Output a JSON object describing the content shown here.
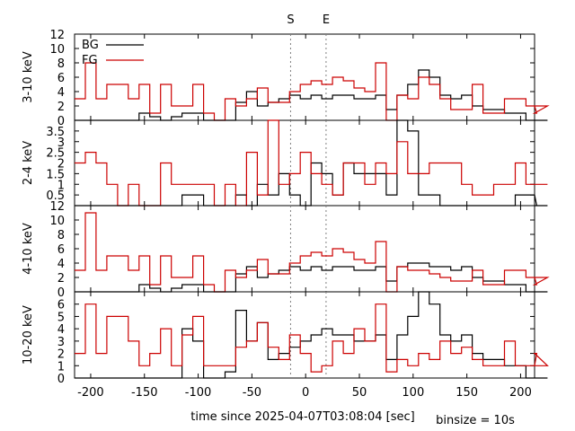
{
  "chart_data": {
    "type": "line",
    "step": true,
    "xlabel": "time since 2025-04-07T03:08:04 [sec]",
    "binsize_label": "binsize = 10s",
    "xlim": [
      -215,
      213
    ],
    "xticks": [
      -200,
      -150,
      -100,
      -50,
      0,
      50,
      100,
      150,
      200
    ],
    "markers": [
      {
        "label": "S",
        "x": -14
      },
      {
        "label": "E",
        "x": 19
      }
    ],
    "bin_start": -215,
    "bin_width": 10,
    "colors": {
      "BG": "#000000",
      "FG": "#cc0000"
    },
    "panels": [
      {
        "ylabel": "3-10 keV",
        "ylim": [
          0,
          12
        ],
        "yticks": [
          0,
          2,
          4,
          6,
          8,
          10,
          12
        ],
        "legend": [
          "BG",
          "FG"
        ],
        "series": [
          {
            "name": "BG",
            "values": [
              0,
              0,
              0,
              0,
              0,
              0,
              1,
              0.5,
              0,
              0.5,
              1,
              1,
              0,
              0,
              0,
              2.5,
              4,
              2,
              2.5,
              3,
              3.5,
              3,
              3.5,
              3,
              3.5,
              3.5,
              3,
              3,
              3.5,
              1.5,
              3.5,
              5,
              7,
              6,
              3.5,
              3,
              3.5,
              2,
              1.5,
              1.5,
              1,
              1,
              0,
              0,
              0
            ]
          },
          {
            "name": "FG",
            "values": [
              3,
              8,
              3,
              5,
              5,
              3,
              5,
              1,
              5,
              2,
              2,
              5,
              1,
              0,
              3,
              2,
              3,
              4.5,
              2.5,
              2.5,
              4,
              5,
              5.5,
              5,
              6,
              5.5,
              4.5,
              4,
              8,
              0,
              3.5,
              3,
              6,
              5,
              3,
              1.5,
              1.5,
              5,
              1,
              1,
              3,
              3,
              2,
              1,
              2
            ]
          }
        ]
      },
      {
        "ylabel": "2-4 keV",
        "ylim": [
          0,
          4
        ],
        "yticks": [
          0.5,
          1,
          1.5,
          2,
          2.5,
          3,
          3.5
        ],
        "series": [
          {
            "name": "BG",
            "values": [
              0,
              0,
              0,
              0,
              0,
              0,
              0,
              0,
              0,
              0,
              0.5,
              0.5,
              0,
              0,
              0,
              0.5,
              0,
              1,
              0.5,
              1.5,
              0.5,
              0,
              2,
              1.5,
              0.5,
              2,
              1.5,
              1.5,
              1.5,
              0.5,
              4,
              3.5,
              0.5,
              0.5,
              0,
              0,
              0,
              0,
              0,
              0,
              0,
              0.5,
              0.5,
              0,
              0
            ]
          },
          {
            "name": "FG",
            "values": [
              2,
              2.5,
              2,
              1,
              0,
              1,
              0,
              0,
              2,
              1,
              1,
              1,
              1,
              0,
              1,
              0,
              2.5,
              0.5,
              4,
              1,
              1.5,
              2.5,
              1.5,
              1,
              0.5,
              2,
              2,
              1,
              2,
              1.5,
              3,
              1.5,
              1.5,
              2,
              2,
              2,
              1,
              0.5,
              0.5,
              1,
              1,
              2,
              1,
              1,
              1
            ]
          }
        ]
      },
      {
        "ylabel": "4-10 keV",
        "ylim": [
          0,
          12
        ],
        "yticks": [
          0,
          2,
          4,
          6,
          8,
          10,
          12
        ],
        "series": [
          {
            "name": "BG",
            "values": [
              0,
              0,
              0,
              0,
              0,
              0,
              1,
              0.5,
              0,
              0.5,
              1,
              1,
              0,
              0,
              0,
              2.5,
              3.5,
              2,
              2.5,
              3,
              3.5,
              3,
              3.5,
              3,
              3.5,
              3.5,
              3,
              3,
              3.5,
              1.5,
              3.5,
              4,
              4,
              3.5,
              3.5,
              3,
              3.5,
              2,
              1.5,
              1.5,
              1,
              1,
              0,
              0,
              0
            ]
          },
          {
            "name": "FG",
            "values": [
              3,
              11,
              3,
              5,
              5,
              3,
              5,
              1,
              5,
              2,
              2,
              5,
              1,
              0,
              3,
              2,
              3,
              4.5,
              2.5,
              2.5,
              4,
              5,
              5.5,
              5,
              6,
              5.5,
              4.5,
              4,
              7,
              0,
              3.5,
              3,
              3,
              2.5,
              2,
              1.5,
              1.5,
              3,
              1,
              1,
              3,
              3,
              2,
              1,
              2
            ]
          }
        ]
      },
      {
        "ylabel": "10-20 keV",
        "ylim": [
          0,
          7
        ],
        "yticks": [
          0,
          1,
          2,
          3,
          4,
          5,
          6
        ],
        "series": [
          {
            "name": "BG",
            "values": [
              0,
              0,
              0,
              0,
              0,
              0,
              0,
              0,
              0,
              0,
              4,
              3,
              0,
              0,
              0.5,
              5.5,
              3,
              4.5,
              1.5,
              2,
              2.5,
              3,
              3.5,
              4,
              3.5,
              3.5,
              3,
              3,
              3.5,
              1.5,
              3.5,
              5,
              7,
              6,
              3.5,
              3,
              3.5,
              2,
              1.5,
              1.5,
              1,
              1,
              0,
              0,
              0
            ]
          },
          {
            "name": "FG",
            "values": [
              2,
              6,
              2,
              5,
              5,
              3,
              1,
              2,
              4,
              1,
              3.5,
              5,
              1,
              1,
              1,
              2.5,
              3,
              4.5,
              2.5,
              1.5,
              3.5,
              2,
              0.5,
              1,
              3,
              2,
              4,
              3,
              6,
              0.5,
              1.5,
              1,
              2,
              1.5,
              3,
              2,
              2.5,
              1.5,
              1,
              1,
              3,
              1,
              1,
              2,
              1
            ]
          }
        ]
      }
    ]
  }
}
